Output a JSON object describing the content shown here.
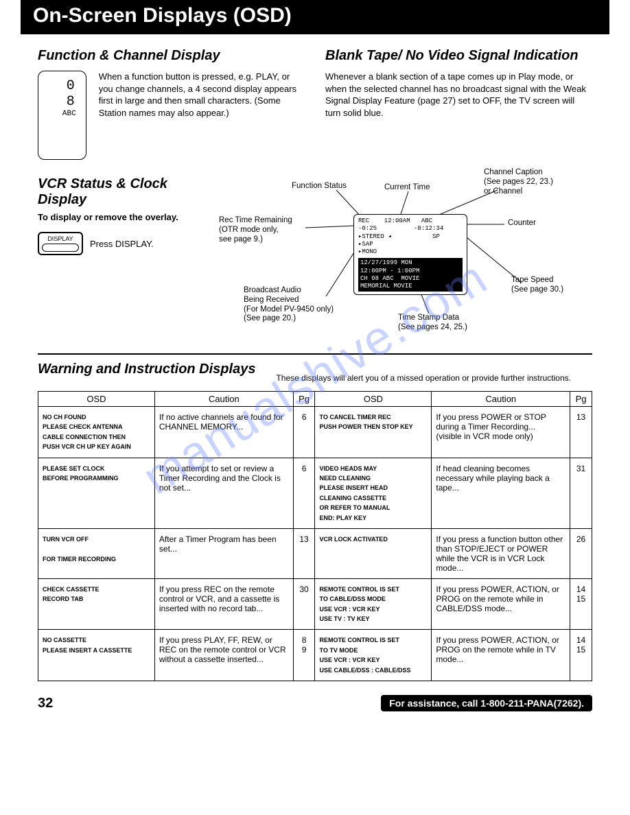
{
  "header_title": "On-Screen Displays (OSD)",
  "func_channel": {
    "title": "Function & Channel Display",
    "tv_num": "0 8",
    "tv_name": "ABC",
    "text": "When a function button is pressed, e.g. PLAY, or you change channels, a 4 second display appears first in large and then small characters. (Some Station names may also appear.)"
  },
  "blank_tape": {
    "title": "Blank Tape/ No Video Signal Indication",
    "text": "Whenever a blank section of a tape comes up in Play mode, or when the selected channel has no broadcast signal with the Weak Signal Display Feature (page 27) set to OFF, the TV screen will turn solid blue."
  },
  "vcr_status": {
    "title": "VCR Status & Clock Display",
    "subtitle": "To display or remove the overlay.",
    "button_label": "DISPLAY",
    "press_text": "Press DISPLAY.",
    "labels": {
      "func_status": "Function Status",
      "current_time": "Current Time",
      "channel_caption": "Channel Caption\n(See pages 22, 23.)\nor Channel",
      "rec_time": "Rec Time Remaining\n(OTR mode only,\nsee page 9.)",
      "counter": "Counter",
      "broadcast_audio": "Broadcast Audio\nBeing Received\n(For Model PV-9450 only)\n(See page 20.)",
      "tape_speed": "Tape Speed\n(See page 30.)",
      "timestamp": "Time Stamp Data\n(See pages 24, 25.)"
    },
    "osd": {
      "l1": "REC    12:00AM   ABC",
      "l2": "-0:25          -0:12:34",
      "l3": "▸STEREO ◂           SP",
      "l4": "▸SAP",
      "l5": "▸MONO",
      "b1": "12/27/1999 MON",
      "b2": "12:00PM - 1:00PM",
      "b3": "CH 08 ABC  MOVIE",
      "b4": "MEMORIAL MOVIE"
    }
  },
  "warning": {
    "title": "Warning and Instruction Displays",
    "note": "These displays will alert you of a missed operation or provide further instructions.",
    "headers": [
      "OSD",
      "Caution",
      "Pg",
      "OSD",
      "Caution",
      "Pg"
    ],
    "rows": [
      {
        "osd1": "NO CH FOUND\nPLEASE CHECK ANTENNA\nCABLE CONNECTION THEN\nPUSH VCR CH UP KEY AGAIN",
        "c1": "If no active channels are found for CHANNEL MEMORY...",
        "p1": "6",
        "osd2": "TO CANCEL TIMER REC\nPUSH POWER THEN STOP KEY",
        "c2": "If you press POWER or STOP during a Timer Recording...\n(visible in VCR mode only)",
        "p2": "13"
      },
      {
        "osd1": "PLEASE SET CLOCK\nBEFORE PROGRAMMING",
        "c1": "If you attempt to set or review a Timer Recording and the Clock is not set...",
        "p1": "6",
        "osd2": "VIDEO HEADS MAY\nNEED CLEANING\nPLEASE INSERT HEAD\nCLEANING CASSETTE\nOR REFER TO MANUAL\nEND: PLAY KEY",
        "c2": "If head cleaning becomes necessary while playing back a tape...",
        "p2": "31"
      },
      {
        "osd1": "TURN VCR OFF\n\nFOR TIMER RECORDING",
        "c1": "After a Timer Program has been set...",
        "p1": "13",
        "osd2": "VCR LOCK ACTIVATED",
        "c2": "If you press a function button other than STOP/EJECT or POWER while the VCR is in VCR Lock mode...",
        "p2": "26"
      },
      {
        "osd1": "CHECK CASSETTE\nRECORD TAB",
        "c1": "If you press REC on the remote control or VCR, and a cassette is inserted with no record tab...",
        "p1": "30",
        "osd2": "REMOTE CONTROL IS SET\nTO CABLE/DSS MODE\nUSE VCR : VCR KEY\nUSE TV   : TV KEY",
        "c2": "If you press POWER, ACTION, or PROG on the remote while in CABLE/DSS mode...",
        "p2": "14\n15"
      },
      {
        "osd1": "NO CASSETTE\nPLEASE INSERT A CASSETTE",
        "c1": "If you press PLAY, FF, REW, or REC on the remote control or VCR without a cassette inserted...",
        "p1": "8\n9",
        "osd2": "REMOTE CONTROL IS SET\nTO TV MODE\nUSE VCR          : VCR KEY\nUSE CABLE/DSS : CABLE/DSS",
        "c2": "If you press POWER, ACTION, or PROG on the remote while in TV mode...",
        "p2": "14\n15"
      }
    ]
  },
  "footer": {
    "page_num": "32",
    "assist": "For assistance, call 1-800-211-PANA(7262)."
  },
  "watermark": "manualshive.com",
  "colors": {
    "text": "#000000",
    "bg": "#ffffff",
    "header_bg": "#000000",
    "header_fg": "#ffffff",
    "watermark": "rgba(100,130,255,0.35)"
  }
}
